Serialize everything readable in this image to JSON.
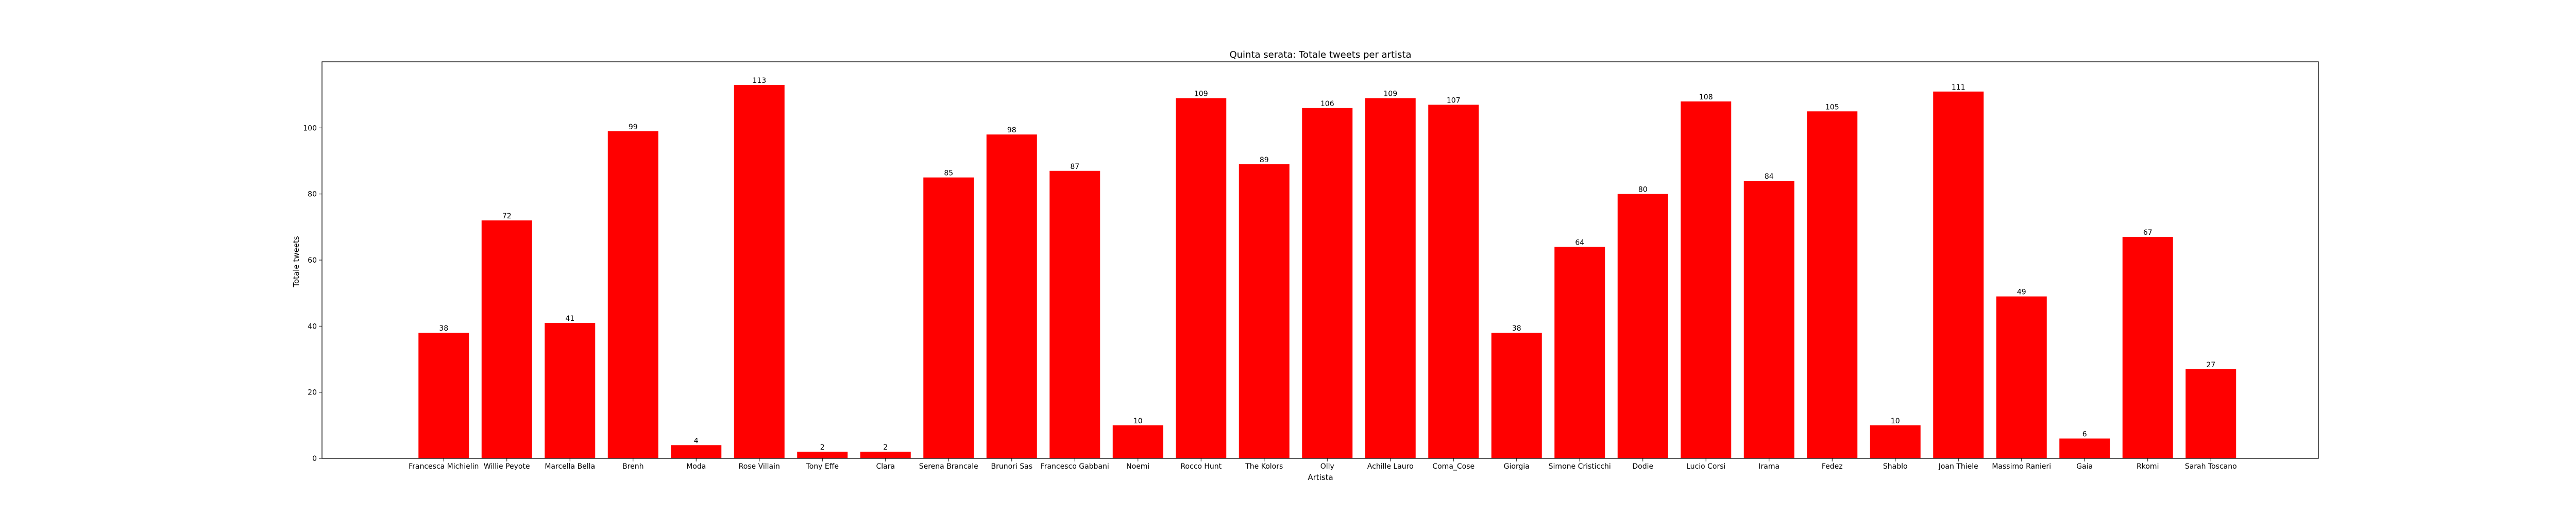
{
  "chart_data": {
    "type": "bar",
    "title": "Quinta serata: Totale tweets per artista",
    "xlabel": "Artista",
    "ylabel": "Totale tweets",
    "ylim": [
      0,
      120
    ],
    "yticks": [
      0,
      20,
      40,
      60,
      80,
      100
    ],
    "grid": false,
    "bar_color": "#ff0000",
    "categories": [
      "Francesca Michielin",
      "Willie Peyote",
      "Marcella Bella",
      "Brenh",
      "Moda",
      "Rose Villain",
      "Tony Effe",
      "Clara",
      "Serena Brancale",
      "Brunori Sas",
      "Francesco Gabbani",
      "Noemi",
      "Rocco Hunt",
      "The Kolors",
      "Olly",
      "Achille Lauro",
      "Coma_Cose",
      "Giorgia",
      "Simone Cristicchi",
      "Dodie",
      "Lucio Corsi",
      "Irama",
      "Fedez",
      "Shablo",
      "Joan Thiele",
      "Massimo Ranieri",
      "Gaia",
      "Rkomi",
      "Sarah Toscano"
    ],
    "values": [
      38,
      72,
      41,
      99,
      4,
      113,
      2,
      2,
      85,
      98,
      87,
      10,
      109,
      89,
      106,
      109,
      107,
      38,
      64,
      80,
      108,
      84,
      105,
      10,
      111,
      49,
      6,
      67,
      27
    ]
  }
}
